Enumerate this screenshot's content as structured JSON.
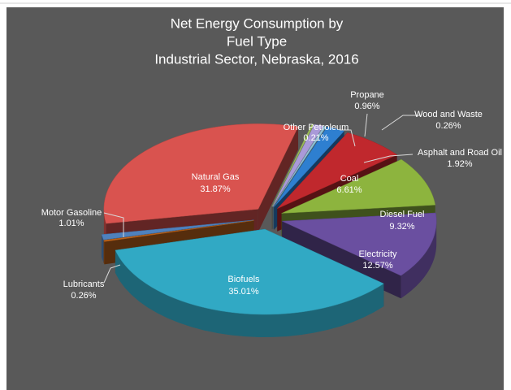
{
  "chart_data": {
    "type": "pie",
    "title": [
      "Net Energy Consumption by",
      "Fuel Type",
      "Industrial Sector, Nebraska, 2016"
    ],
    "categories": [
      "Other Petroleum",
      "Propane",
      "Wood and Waste",
      "Asphalt and Road Oil",
      "Coal",
      "Diesel Fuel",
      "Electricity",
      "Biofuels",
      "Lubricants",
      "Motor Gasoline",
      "Natural Gas"
    ],
    "values": [
      0.21,
      0.96,
      0.26,
      1.92,
      6.61,
      9.32,
      12.57,
      35.01,
      0.26,
      1.01,
      31.87
    ],
    "value_labels": [
      "0.21%",
      "0.96%",
      "0.26%",
      "1.92%",
      "6.61%",
      "9.32%",
      "12.57%",
      "35.01%",
      "0.26%",
      "1.01%",
      "31.87%"
    ],
    "colors": [
      "#9bbb59",
      "#a99ad8",
      "#8fc0d4",
      "#2e7fd0",
      "#c0282d",
      "#8db43e",
      "#6a4fa0",
      "#31a9c4",
      "#c0651c",
      "#4f81bd",
      "#d9534f"
    ]
  }
}
